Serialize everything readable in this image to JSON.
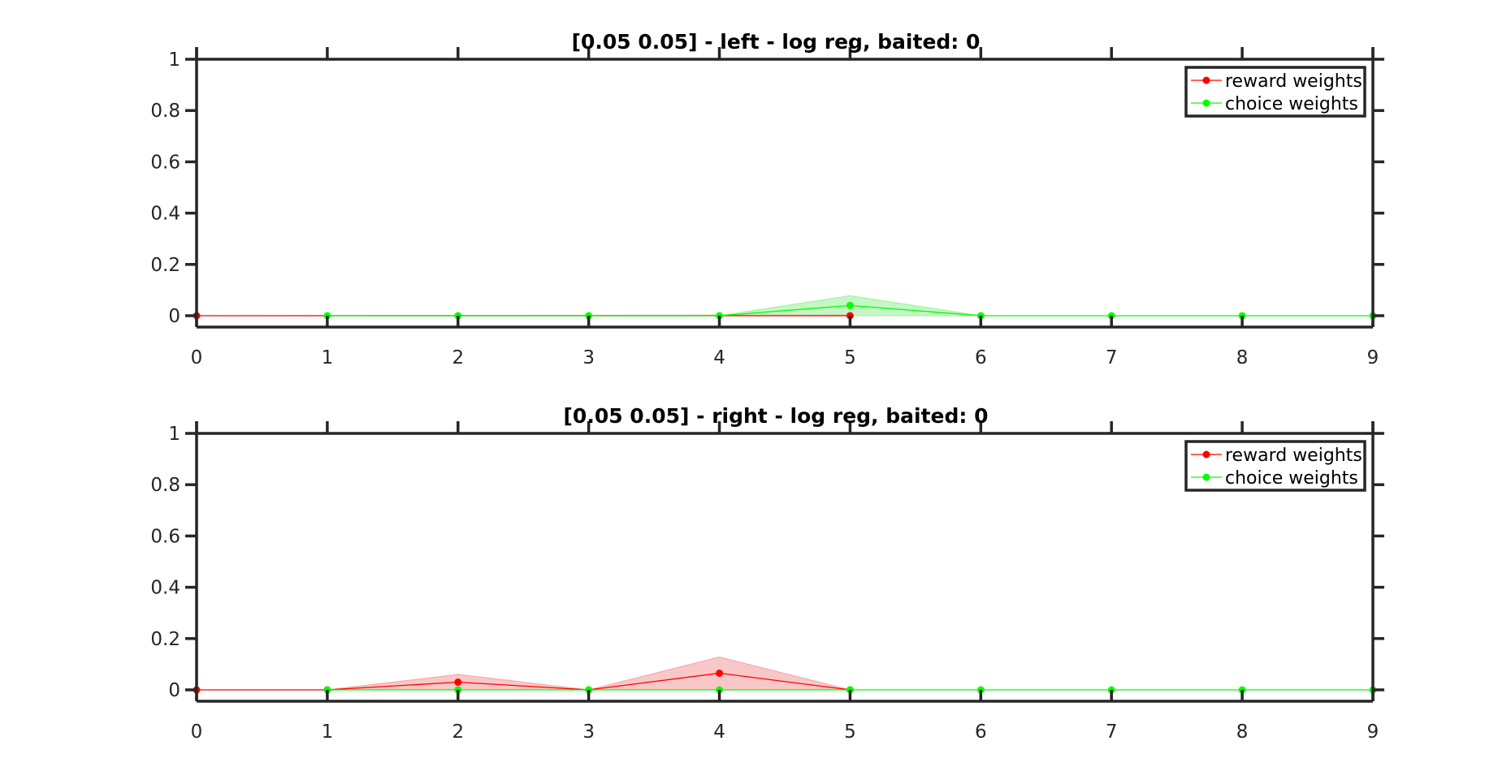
{
  "colors": {
    "reward": "#ff0000",
    "choice": "#00ff00",
    "reward_band": "#f4a3a3",
    "choice_band": "#9ef09e",
    "axis": "#262626"
  },
  "chart_data": [
    {
      "type": "line",
      "title": "[0.05 0.05] - left - log reg, baited: 0",
      "xlabel": "",
      "ylabel": "",
      "xlim": [
        0,
        9
      ],
      "ylim": [
        -0.05,
        1
      ],
      "xticks": [
        "0",
        "1",
        "2",
        "3",
        "4",
        "5",
        "6",
        "7",
        "8",
        "9"
      ],
      "yticks": [
        "1",
        "0.8",
        "0.6",
        "0.4",
        "0.2",
        "0"
      ],
      "grid": false,
      "legend_position": "top-right",
      "series": [
        {
          "name": "reward weights",
          "x": [
            0,
            5
          ],
          "y": [
            0,
            0
          ],
          "lower": [
            0,
            0
          ],
          "upper": [
            0,
            0.003
          ]
        },
        {
          "name": "choice weights",
          "x": [
            1,
            2,
            3,
            4,
            5,
            6,
            7,
            8,
            9
          ],
          "y": [
            0,
            0,
            0,
            0,
            0.04,
            0,
            0,
            0,
            0
          ],
          "lower": [
            0,
            0,
            0,
            0,
            0,
            0,
            0,
            0,
            0
          ],
          "upper": [
            0,
            0,
            0,
            0,
            0.078,
            0,
            0,
            0,
            0
          ]
        }
      ]
    },
    {
      "type": "line",
      "title": "[0.05 0.05] - right - log reg, baited: 0",
      "xlabel": "",
      "ylabel": "",
      "xlim": [
        0,
        9
      ],
      "ylim": [
        -0.05,
        1
      ],
      "xticks": [
        "0",
        "1",
        "2",
        "3",
        "4",
        "5",
        "6",
        "7",
        "8",
        "9"
      ],
      "yticks": [
        "1",
        "0.8",
        "0.6",
        "0.4",
        "0.2",
        "0"
      ],
      "grid": false,
      "legend_position": "top-right",
      "series": [
        {
          "name": "reward weights",
          "x": [
            0,
            1,
            2,
            3,
            4,
            5
          ],
          "y": [
            0,
            0,
            0.03,
            0,
            0.065,
            0
          ],
          "lower": [
            0,
            0,
            0,
            0,
            0,
            0
          ],
          "upper": [
            0,
            0,
            0.06,
            0,
            0.128,
            0
          ]
        },
        {
          "name": "choice weights",
          "x": [
            1,
            2,
            3,
            4,
            5,
            6,
            7,
            8,
            9
          ],
          "y": [
            0,
            0,
            0,
            0,
            0,
            0,
            0,
            0,
            0
          ],
          "lower": [
            0,
            0,
            0,
            0,
            0,
            0,
            0,
            0,
            0
          ],
          "upper": [
            0,
            0,
            0,
            0,
            0,
            0,
            0,
            0,
            0
          ]
        }
      ]
    }
  ]
}
